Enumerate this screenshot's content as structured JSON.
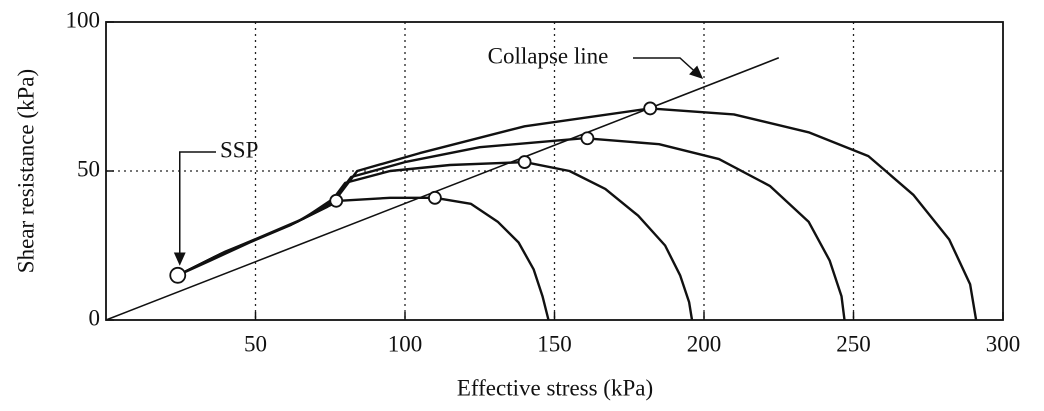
{
  "chart_data": {
    "type": "line",
    "x_label": "Effective stress (kPa)",
    "y_label": "Shear resistance (kPa)",
    "xlim": [
      0,
      300
    ],
    "xticks": [
      50,
      100,
      150,
      200,
      250,
      300
    ],
    "ylim": [
      0,
      100
    ],
    "yticks": [
      0,
      50,
      100
    ],
    "grid": true,
    "color": "#111111",
    "series": [
      {
        "color": "#111111",
        "x": [
          24,
          32,
          40,
          50,
          62,
          72,
          78,
          95,
          110,
          122,
          131,
          138,
          143,
          146,
          148
        ],
        "values": [
          15,
          19,
          23,
          27,
          32,
          37,
          40,
          41,
          41,
          39,
          33,
          26,
          17,
          8,
          0
        ]
      },
      {
        "color": "#111111",
        "x": [
          24,
          35,
          48,
          62,
          74,
          80,
          95,
          115,
          140,
          155,
          167,
          178,
          187,
          192,
          195,
          196
        ],
        "values": [
          15,
          20,
          26,
          32,
          38,
          46,
          50,
          52,
          53,
          50,
          44,
          35,
          25,
          15,
          6,
          0
        ]
      },
      {
        "color": "#111111",
        "x": [
          24,
          36,
          50,
          64,
          76,
          82,
          100,
          125,
          160,
          185,
          205,
          222,
          235,
          242,
          246,
          247
        ],
        "values": [
          15,
          21,
          27,
          33,
          40,
          48,
          53,
          58,
          61,
          59,
          54,
          45,
          33,
          20,
          8,
          0
        ]
      },
      {
        "color": "#111111",
        "x": [
          24,
          38,
          52,
          66,
          78,
          84,
          105,
          140,
          182,
          210,
          235,
          255,
          270,
          282,
          289,
          291
        ],
        "values": [
          15,
          22,
          28,
          34,
          42,
          50,
          56,
          65,
          71,
          69,
          63,
          55,
          42,
          27,
          12,
          0
        ]
      }
    ],
    "collapse_line": {
      "label": "Collapse line",
      "x": [
        0,
        225
      ],
      "values": [
        0,
        88
      ]
    },
    "points": {
      "x": [
        24,
        77,
        110,
        140,
        161,
        182
      ],
      "values": [
        15,
        40,
        41,
        53,
        61,
        71
      ]
    },
    "ssp_label": "SSP"
  }
}
